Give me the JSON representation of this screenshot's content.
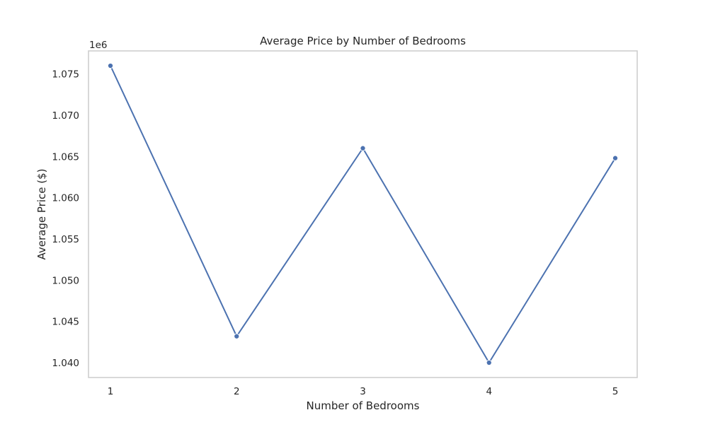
{
  "chart_data": {
    "type": "line",
    "title": "Average Price by Number of Bedrooms",
    "xlabel": "Number of Bedrooms",
    "ylabel": "Average Price ($)",
    "y_offset_label": "1e6",
    "x": [
      1,
      2,
      3,
      4,
      5
    ],
    "x_tick_labels": [
      "1",
      "2",
      "3",
      "4",
      "5"
    ],
    "y_ticks": [
      1.04,
      1.045,
      1.05,
      1.055,
      1.06,
      1.065,
      1.07,
      1.075
    ],
    "y_tick_labels": [
      "1.040",
      "1.045",
      "1.050",
      "1.055",
      "1.060",
      "1.065",
      "1.070",
      "1.075"
    ],
    "ylim": [
      1.0382,
      1.0778
    ],
    "series": [
      {
        "values": [
          1.076,
          1.0432,
          1.066,
          1.04,
          1.0648
        ]
      }
    ],
    "grid": false,
    "legend": "none",
    "colors": {
      "line": "#4c72b0",
      "frame": "#cccccc"
    }
  }
}
